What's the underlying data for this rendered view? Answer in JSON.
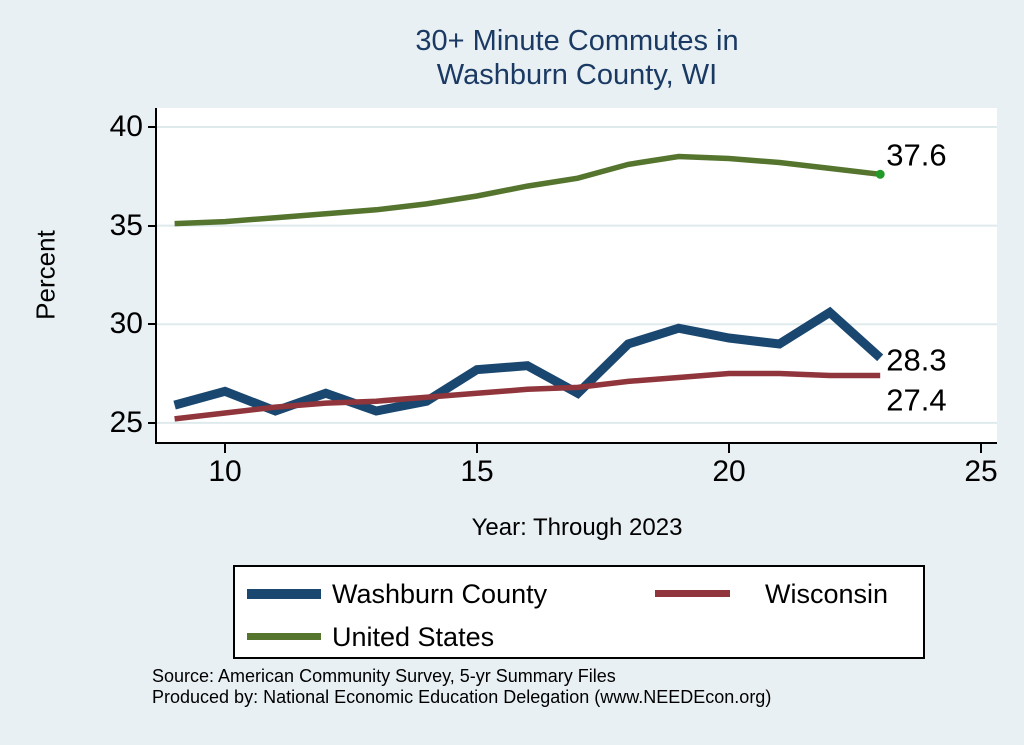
{
  "title": {
    "line1": "30+ Minute Commutes in",
    "line2": "Washburn County, WI"
  },
  "y_axis": {
    "title": "Percent",
    "tick_labels": [
      "40",
      "35",
      "30",
      "25"
    ]
  },
  "x_axis": {
    "title": "Year: Through 2023",
    "tick_labels": [
      "10",
      "15",
      "20",
      "25"
    ]
  },
  "legend": {
    "items": [
      {
        "label": "Washburn County",
        "color": "#1a476f",
        "swatch_height": 10
      },
      {
        "label": "Wisconsin",
        "color": "#90353b",
        "swatch_height": 7
      },
      {
        "label": "United States",
        "color": "#55752f",
        "swatch_height": 7
      }
    ]
  },
  "source": {
    "line1": "Source: American Community Survey, 5-yr Summary Files",
    "line2": "Produced by: National Economic Education Delegation (www.NEEDEcon.org)"
  },
  "colors": {
    "background": "#e8f0f3",
    "plot_background": "#ffffff",
    "gridline": "#dfeaec",
    "axis": "#000000",
    "title": "#1b3a63",
    "county_line": "#1a476f",
    "state_line": "#90353b",
    "us_line": "#55752f",
    "us_end_marker": "#229a2a"
  },
  "chart_data": {
    "type": "line",
    "title": "30+ Minute Commutes in Washburn County, WI",
    "xlabel": "Year: Through 2023",
    "ylabel": "Percent",
    "x": [
      9,
      10,
      11,
      12,
      13,
      14,
      15,
      16,
      17,
      18,
      19,
      20,
      21,
      22,
      23
    ],
    "x_note": "years 2009-2023, axis labeled 10/15/20/25",
    "series": [
      {
        "name": "Washburn County",
        "color": "#1a476f",
        "width": 9,
        "values": [
          25.9,
          26.6,
          25.6,
          26.5,
          25.6,
          26.1,
          27.7,
          27.9,
          26.5,
          29.0,
          29.8,
          29.3,
          29.0,
          30.6,
          28.3
        ]
      },
      {
        "name": "Wisconsin",
        "color": "#90353b",
        "width": 5.5,
        "values": [
          25.2,
          25.5,
          25.8,
          26.0,
          26.1,
          26.3,
          26.5,
          26.7,
          26.8,
          27.1,
          27.3,
          27.5,
          27.5,
          27.4,
          27.4
        ]
      },
      {
        "name": "United States",
        "color": "#55752f",
        "width": 5.5,
        "values": [
          35.1,
          35.2,
          35.4,
          35.6,
          35.8,
          36.1,
          36.5,
          37.0,
          37.4,
          38.1,
          38.5,
          38.4,
          38.2,
          37.9,
          37.6
        ]
      }
    ],
    "x_ticks": [
      10,
      15,
      20,
      25
    ],
    "y_ticks": [
      25,
      30,
      35,
      40
    ],
    "grid_y": [
      25,
      30,
      35,
      40
    ],
    "xlim": [
      8.651,
      25.317
    ],
    "ylim": [
      24.03,
      40.96
    ],
    "legend_position": "bottom",
    "grid": true,
    "end_marker": {
      "series": "United States",
      "x": 23,
      "y": 37.6,
      "color": "#229a2a",
      "radius": 4.5
    },
    "annotations": [
      {
        "text": "37.6",
        "x": 23.12,
        "y": 38.58
      },
      {
        "text": "28.3",
        "x": 23.12,
        "y": 28.19
      },
      {
        "text": "27.4",
        "x": 23.12,
        "y": 26.16
      }
    ]
  }
}
